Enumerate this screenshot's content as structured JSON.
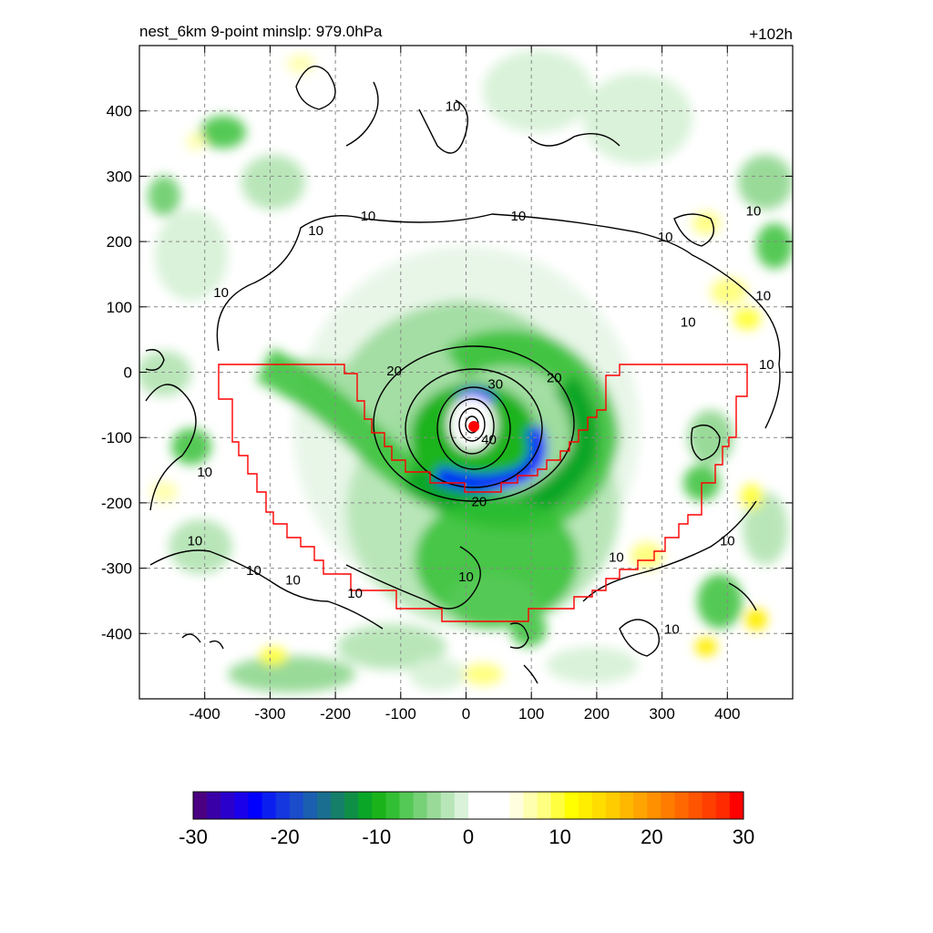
{
  "chart_data": {
    "type": "heatmap",
    "title_left": "nest_6km  9-point minslp: 979.0hPa",
    "title_right": "+102h",
    "xlabel": "",
    "ylabel": "",
    "xlim": [
      -500,
      500
    ],
    "ylim": [
      -500,
      500
    ],
    "x_ticks": [
      -400,
      -300,
      -200,
      -100,
      0,
      100,
      200,
      300,
      400
    ],
    "y_ticks": [
      400,
      300,
      200,
      100,
      0,
      -100,
      -200,
      -300,
      -400
    ],
    "x_tick_labels": [
      "-400",
      "-300",
      "-200",
      "-100",
      "0",
      "100",
      "200",
      "300",
      "400"
    ],
    "y_tick_labels": [
      "400",
      "300",
      "200",
      "100",
      "0",
      "-100",
      "-200",
      "-300",
      "-400"
    ],
    "grid": true,
    "colorbar": {
      "range": [
        -30,
        30
      ],
      "ticks": [
        -30,
        -20,
        -10,
        0,
        10,
        20,
        30
      ],
      "tick_labels": [
        "-30",
        "-20",
        "-10",
        "0",
        "10",
        "20",
        "30"
      ],
      "colors": [
        "#4b0082",
        "#3a00a8",
        "#2a00cc",
        "#1a00ea",
        "#0000ff",
        "#0a1ef0",
        "#1437e0",
        "#1a4ccc",
        "#1a5fb0",
        "#1a6f90",
        "#157f6a",
        "#0f8f46",
        "#0aa628",
        "#1ab41a",
        "#33bf33",
        "#55c955",
        "#77d177",
        "#99da99",
        "#b9e6b9",
        "#d9f2d9",
        "#ffffff",
        "#ffffff",
        "#ffffff",
        "#ffffe0",
        "#ffffb0",
        "#ffff80",
        "#ffff40",
        "#ffff00",
        "#ffee00",
        "#ffdd00",
        "#ffcc00",
        "#ffb800",
        "#ffa400",
        "#ff9000",
        "#ff7c00",
        "#ff6800",
        "#ff5400",
        "#ff3f00",
        "#ff2a00",
        "#ff0000"
      ]
    },
    "contour_labels": [
      {
        "text": "10",
        "x": -230,
        "y": 210
      },
      {
        "text": "10",
        "x": -150,
        "y": 232
      },
      {
        "text": "10",
        "x": 80,
        "y": 232
      },
      {
        "text": "10",
        "x": 305,
        "y": 200
      },
      {
        "text": "10",
        "x": 440,
        "y": 240
      },
      {
        "text": "10",
        "x": 455,
        "y": 110
      },
      {
        "text": "10",
        "x": 340,
        "y": 70
      },
      {
        "text": "10",
        "x": 460,
        "y": 5
      },
      {
        "text": "10",
        "x": -20,
        "y": 400
      },
      {
        "text": "10",
        "x": -375,
        "y": 115
      },
      {
        "text": "10",
        "x": -400,
        "y": -160
      },
      {
        "text": "10",
        "x": -415,
        "y": -265
      },
      {
        "text": "10",
        "x": -325,
        "y": -310
      },
      {
        "text": "10",
        "x": -265,
        "y": -325
      },
      {
        "text": "10",
        "x": -170,
        "y": -345
      },
      {
        "text": "10",
        "x": 0,
        "y": -320
      },
      {
        "text": "10",
        "x": 230,
        "y": -290
      },
      {
        "text": "10",
        "x": 400,
        "y": -265
      },
      {
        "text": "10",
        "x": 315,
        "y": -400
      },
      {
        "text": "20",
        "x": -110,
        "y": -5
      },
      {
        "text": "20",
        "x": 135,
        "y": -15
      },
      {
        "text": "20",
        "x": 20,
        "y": -205
      },
      {
        "text": "30",
        "x": 45,
        "y": -25
      },
      {
        "text": "40",
        "x": 35,
        "y": -110
      }
    ],
    "center_marker": {
      "x": 12,
      "y": -83
    }
  }
}
